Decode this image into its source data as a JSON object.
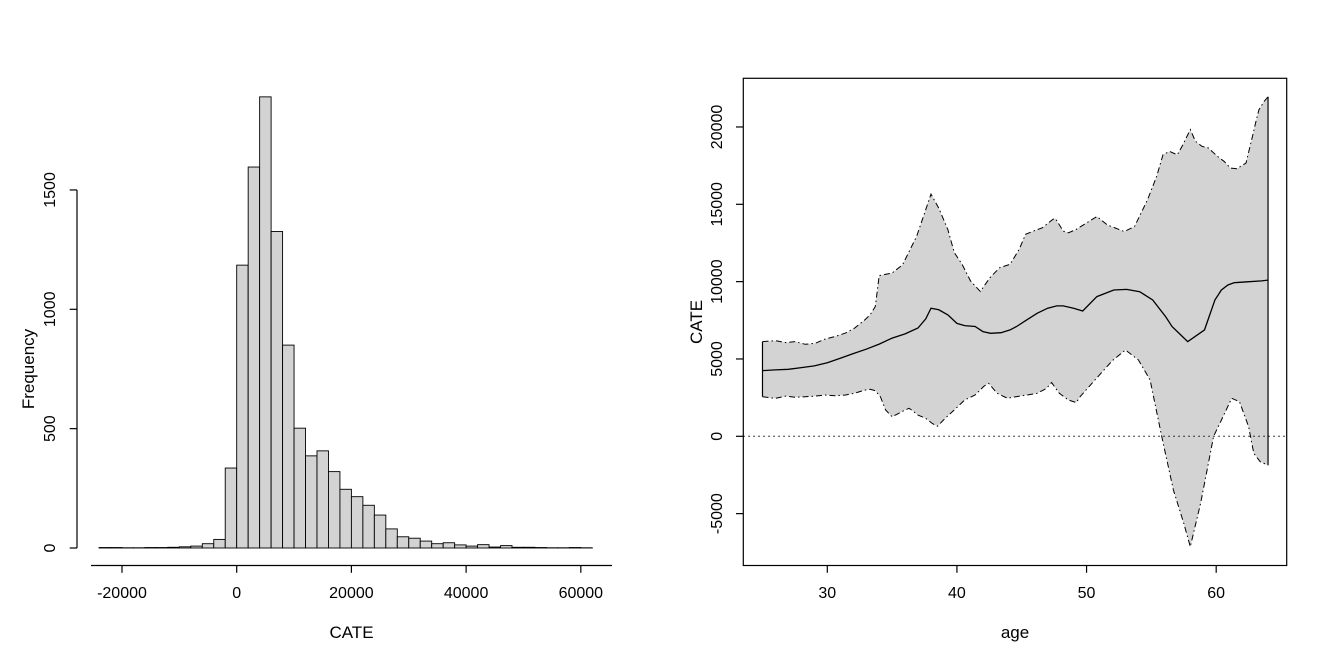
{
  "figure": {
    "background": "#ffffff"
  },
  "chart_data": [
    {
      "type": "bar",
      "subtype": "histogram",
      "xlabel": "CATE",
      "ylabel": "Frequency",
      "bar_fill": "#d3d3d3",
      "bar_stroke": "#000000",
      "bin_width": 2000,
      "bins_start": [
        -24000,
        -22000,
        -20000,
        -18000,
        -16000,
        -14000,
        -12000,
        -10000,
        -8000,
        -6000,
        -4000,
        -2000,
        0,
        2000,
        4000,
        6000,
        8000,
        10000,
        12000,
        14000,
        16000,
        18000,
        20000,
        22000,
        24000,
        26000,
        28000,
        30000,
        32000,
        34000,
        36000,
        38000,
        40000,
        42000,
        44000,
        46000,
        48000,
        50000,
        52000,
        54000,
        56000,
        58000,
        60000
      ],
      "counts": [
        2,
        2,
        1,
        1,
        2,
        2,
        3,
        5,
        8,
        18,
        36,
        335,
        1185,
        1596,
        1890,
        1326,
        850,
        502,
        386,
        407,
        320,
        246,
        215,
        179,
        138,
        80,
        47,
        41,
        29,
        18,
        22,
        13,
        8,
        14,
        4,
        10,
        3,
        3,
        2,
        1,
        1,
        2,
        1
      ],
      "x_ticks": [
        -20000,
        0,
        20000,
        40000,
        60000
      ],
      "x_tick_labels": [
        "-20000",
        "0",
        "20000",
        "40000",
        "60000"
      ],
      "y_ticks": [
        0,
        500,
        1000,
        1500
      ],
      "y_tick_labels": [
        "0",
        "500",
        "1000",
        "1500"
      ],
      "xlim": [
        -26000,
        65000
      ],
      "ylim": [
        0,
        1890
      ],
      "grid": "off"
    },
    {
      "type": "line",
      "subtype": "line-with-confidence-band",
      "xlabel": "age",
      "ylabel": "CATE",
      "band_fill": "#d3d3d3",
      "line_color": "#000000",
      "zero_reference_line": 0,
      "x_ticks": [
        30,
        40,
        50,
        60
      ],
      "x_tick_labels": [
        "30",
        "40",
        "50",
        "60"
      ],
      "y_ticks": [
        -5000,
        0,
        5000,
        10000,
        15000,
        20000
      ],
      "y_tick_labels": [
        "-5000",
        "0",
        "5000",
        "10000",
        "15000",
        "20000"
      ],
      "x_range": [
        25,
        64
      ],
      "ylim": [
        -8300,
        23100
      ],
      "grid": "off",
      "series": {
        "median": {
          "name": "CATE estimate",
          "x": [
            25,
            26,
            27,
            28,
            29,
            30,
            31,
            32,
            33,
            34,
            35,
            36,
            37,
            37.6,
            38,
            38.6,
            39.3,
            40,
            40.6,
            41.4,
            42,
            42.6,
            43.4,
            44.1,
            44.6,
            45.4,
            46.2,
            47,
            47.7,
            48.2,
            49,
            49.7,
            50.8,
            52.1,
            53.1,
            54.1,
            55.1,
            56.1,
            56.6,
            57.8,
            59.1,
            59.9,
            60.4,
            60.9,
            61.4,
            62.4,
            63.5,
            64
          ],
          "y": [
            4250,
            4290,
            4330,
            4440,
            4550,
            4750,
            5050,
            5350,
            5630,
            5960,
            6350,
            6620,
            7000,
            7600,
            8280,
            8180,
            7850,
            7300,
            7160,
            7100,
            6770,
            6660,
            6700,
            6880,
            7100,
            7530,
            7960,
            8280,
            8430,
            8430,
            8280,
            8100,
            9030,
            9460,
            9500,
            9350,
            8810,
            7740,
            7090,
            6120,
            6880,
            8810,
            9460,
            9780,
            9930,
            9990,
            10050,
            10100
          ]
        },
        "upper": {
          "name": "upper confidence bound",
          "x": [
            25,
            26,
            26.8,
            27.5,
            28.3,
            29.1,
            29.8,
            30.6,
            31.4,
            32.1,
            32.9,
            33.3,
            33.7,
            34,
            35,
            35.8,
            36.9,
            38,
            38.6,
            39.3,
            39.8,
            40.4,
            41.05,
            41.8,
            42.55,
            43.3,
            44.1,
            44.8,
            45.3,
            45.9,
            46.6,
            47.4,
            47.6,
            48.2,
            48.6,
            49.2,
            50,
            50.8,
            51.6,
            52.9,
            53.7,
            54.7,
            55.4,
            55.9,
            56.4,
            57,
            57.4,
            58,
            58.4,
            58.9,
            59.4,
            60.1,
            60.6,
            61.1,
            61.6,
            62.3,
            62.8,
            63.1,
            63.3,
            63.7,
            64
          ],
          "y": [
            6120,
            6180,
            6060,
            6120,
            5950,
            6020,
            6280,
            6450,
            6670,
            6990,
            7530,
            7850,
            8390,
            10390,
            10560,
            11080,
            12940,
            15660,
            14750,
            13360,
            11880,
            11120,
            10050,
            9360,
            10260,
            10900,
            11120,
            12090,
            13060,
            13270,
            13490,
            14030,
            14080,
            13270,
            13160,
            13380,
            13800,
            14210,
            13670,
            13240,
            13560,
            15290,
            16800,
            18210,
            18420,
            18200,
            18800,
            19830,
            19080,
            18750,
            18640,
            18100,
            17780,
            17340,
            17300,
            17670,
            19400,
            20480,
            21120,
            21660,
            21950
          ]
        },
        "lower": {
          "name": "lower confidence bound",
          "x": [
            25,
            26,
            26.8,
            27.5,
            28.3,
            29.1,
            29.8,
            30.6,
            31.4,
            32.1,
            32.9,
            33.3,
            33.7,
            34.1,
            34.5,
            35,
            35.5,
            36,
            36.3,
            36.5,
            37,
            37.6,
            38.1,
            38.5,
            39.1,
            39.8,
            40.6,
            41.4,
            42.1,
            42.45,
            43.1,
            43.9,
            44.6,
            45.4,
            46.2,
            46.9,
            47.3,
            47.9,
            48.6,
            49.2,
            49.5,
            51,
            52,
            53,
            54,
            54.9,
            55.8,
            56.7,
            57.5,
            58,
            58.8,
            59.3,
            59.8,
            60.4,
            61.2,
            61.8,
            62.5,
            62.9,
            63.4,
            64
          ],
          "y": [
            2560,
            2450,
            2600,
            2520,
            2560,
            2600,
            2670,
            2620,
            2670,
            2780,
            2990,
            3040,
            2950,
            2560,
            1700,
            1260,
            1480,
            1700,
            1810,
            1700,
            1370,
            1160,
            830,
            650,
            1170,
            1710,
            2350,
            2670,
            3250,
            3420,
            2780,
            2460,
            2570,
            2670,
            2780,
            3100,
            3470,
            2780,
            2350,
            2180,
            2560,
            3970,
            4900,
            5580,
            4940,
            3640,
            0,
            -3470,
            -5630,
            -7140,
            -4330,
            -2180,
            0,
            1050,
            2460,
            2240,
            620,
            -1100,
            -1650,
            -1870
          ]
        }
      }
    }
  ]
}
